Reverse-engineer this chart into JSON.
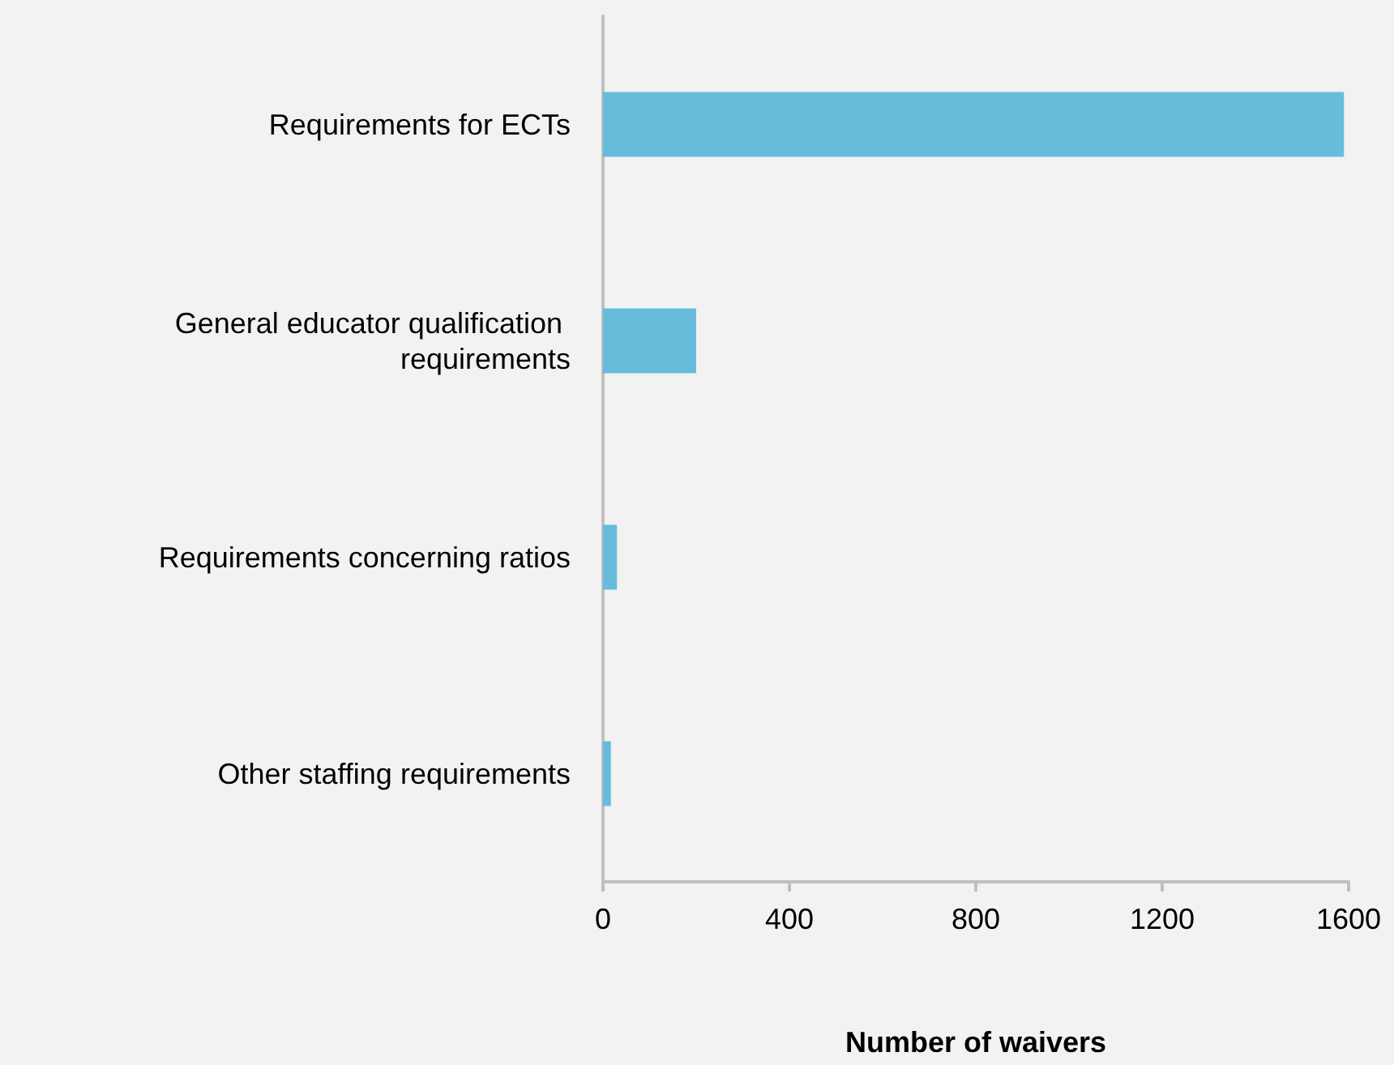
{
  "chart_data": {
    "type": "bar",
    "orientation": "horizontal",
    "xlabel": "Number of waivers",
    "categories": [
      "Requirements for ECTs",
      "General educator qualification requirements",
      "Requirements concerning ratios",
      "Other staffing requirements"
    ],
    "values": [
      1590,
      200,
      30,
      17
    ],
    "color": "#67bcdb",
    "xlim": [
      0,
      1600
    ],
    "xticks": [
      0,
      400,
      800,
      1200,
      1600
    ],
    "grid": false
  }
}
